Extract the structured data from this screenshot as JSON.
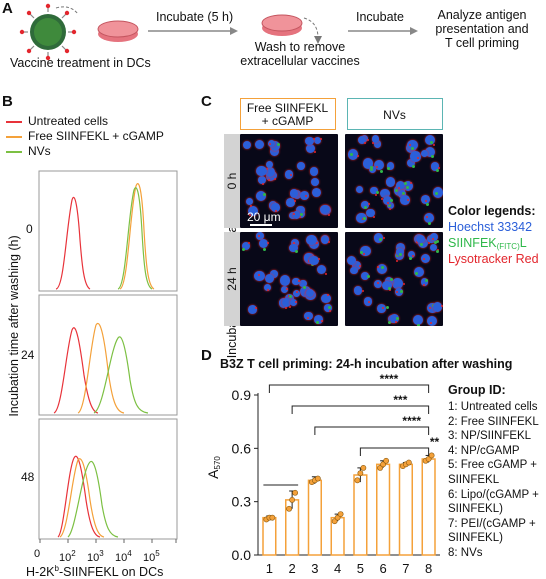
{
  "panelA": {
    "letter": "A",
    "step1": "Vaccine treatment in DCs",
    "arrow1_label": "Incubate (5 h)",
    "step2_line1": "Wash to remove",
    "step2_line2": "extracellular vaccines",
    "arrow2_label": "Incubate",
    "step3_line1": "Analyze antigen",
    "step3_line2": "presentation and",
    "step3_line3": "T cell priming"
  },
  "panelB": {
    "letter": "B",
    "legend": [
      {
        "label": "Untreated cells",
        "color": "#e8333a"
      },
      {
        "label": "Free SIINFEKL + cGAMP",
        "color": "#f4a13a"
      },
      {
        "label": "NVs",
        "color": "#7cc043"
      }
    ],
    "ylabel": "Incubation time after washing (h)",
    "row_labels": [
      "0",
      "24",
      "48"
    ],
    "xticks": [
      "10",
      "10",
      "10",
      "10",
      "10"
    ],
    "xtick_exps": [
      "2",
      "3",
      "4",
      "5"
    ],
    "xtick_zero": "0",
    "xlabel_pre": "H-2K",
    "xlabel_sup": "b",
    "xlabel_post": "-SIINFEKL on DCs"
  },
  "panelC": {
    "letter": "C",
    "col1_line1": "Free SIINFEKL",
    "col1_line2": "+ cGAMP",
    "col2": "NVs",
    "row1": "0  h",
    "row2": "24 h",
    "ylabel": "Incubation time after washing",
    "scalebar": "20 μm",
    "legend_title": "Color legends:",
    "legend1": "Hoechst 33342",
    "legend2_pre": "SIINFEK",
    "legend2_sub": "(FITC)",
    "legend2_post": "L",
    "legend3": "Lysotracker Red",
    "colors": {
      "hoechst": "#2b5fd9",
      "fitc": "#2fb84a",
      "lyso": "#e3262d",
      "frame1": "#f4a13a",
      "frame2": "#5bb5b3"
    }
  },
  "panelD": {
    "letter": "D",
    "title": "B3Z T cell priming: 24-h incubation after washing",
    "ylabel_main": "A",
    "ylabel_sub": "570",
    "group_title": "Group ID:",
    "groups": [
      "1: Untreated cells",
      "2: Free SIINFEKL",
      "3: NP/SIINFEKL",
      "4: NP/cGAMP",
      "5: Free cGAMP +",
      "SIINFEKL",
      "6: Lipo/(cGAMP +",
      "SIINFEKL)",
      "7: PEI/(cGAMP +",
      "SIINFEKL)",
      "8: NVs"
    ],
    "significance": [
      "****",
      "***",
      "****",
      "**"
    ]
  },
  "chart_data": {
    "type": "bar",
    "title": "B3Z T cell priming: 24-h incubation after washing",
    "xlabel": "",
    "ylabel": "A570",
    "categories": [
      "1",
      "2",
      "3",
      "4",
      "5",
      "6",
      "7",
      "8"
    ],
    "values": [
      0.21,
      0.31,
      0.42,
      0.21,
      0.45,
      0.51,
      0.51,
      0.54
    ],
    "errors": [
      0.01,
      0.05,
      0.02,
      0.02,
      0.04,
      0.02,
      0.01,
      0.02
    ],
    "points": [
      [
        0.2,
        0.21,
        0.21
      ],
      [
        0.26,
        0.31,
        0.35
      ],
      [
        0.41,
        0.42,
        0.43
      ],
      [
        0.19,
        0.21,
        0.23
      ],
      [
        0.42,
        0.46,
        0.49
      ],
      [
        0.49,
        0.51,
        0.53
      ],
      [
        0.5,
        0.51,
        0.52
      ],
      [
        0.53,
        0.54,
        0.56
      ]
    ],
    "ylim": [
      0,
      0.9
    ],
    "yticks": [
      "0.0",
      "0.3",
      "0.6",
      "0.9"
    ],
    "bar_color": "#f4a13a"
  }
}
